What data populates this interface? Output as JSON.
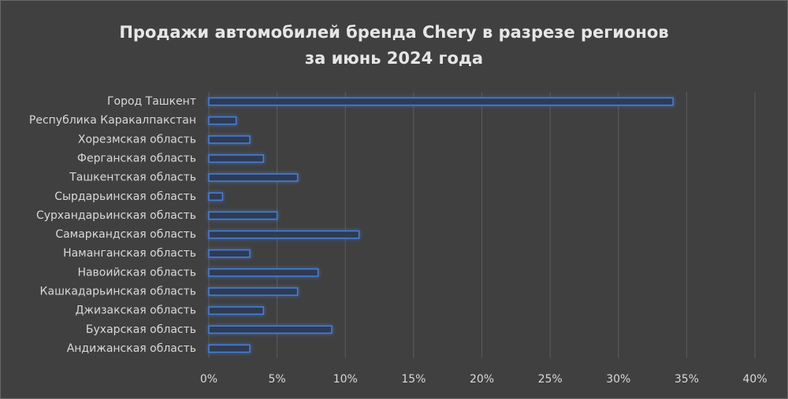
{
  "chart_data": {
    "type": "bar",
    "orientation": "horizontal",
    "title": [
      "Продажи автомобилей бренда Chery в разрезе регионов",
      "за июнь 2024 года"
    ],
    "categories": [
      "Город Ташкент",
      "Республика Каракалпакстан",
      "Хорезмская область",
      "Ферганская область",
      "Ташкентская область",
      "Сырдарьинская область",
      "Сурхандарьинская область",
      "Самаркандская область",
      "Наманганская область",
      "Навоийская область",
      "Кашкадарьинская область",
      "Джизакская область",
      "Бухарская область",
      "Андижанская область"
    ],
    "values": [
      34,
      2,
      3,
      4,
      6.5,
      1,
      5,
      11,
      3,
      8,
      6.5,
      4,
      9,
      3
    ],
    "color": "#4a7fd4",
    "xlim": [
      0,
      40
    ],
    "xticks": [
      {
        "value": 0,
        "label": "0%"
      },
      {
        "value": 5,
        "label": "5%"
      },
      {
        "value": 10,
        "label": "10%"
      },
      {
        "value": 15,
        "label": "15%"
      },
      {
        "value": 20,
        "label": "20%"
      },
      {
        "value": 25,
        "label": "25%"
      },
      {
        "value": 30,
        "label": "30%"
      },
      {
        "value": 35,
        "label": "35%"
      },
      {
        "value": 40,
        "label": "40%"
      }
    ],
    "grid": true
  }
}
